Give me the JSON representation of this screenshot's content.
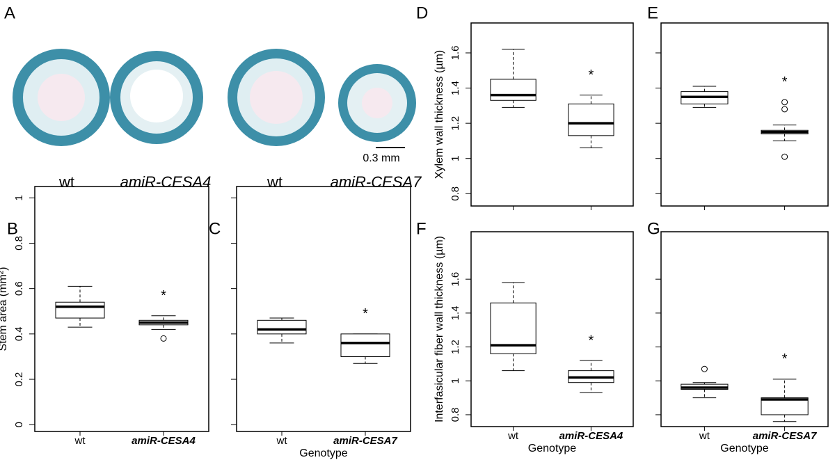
{
  "figure_a": {
    "panel": "A",
    "captions": [
      "wt",
      "amiR-CESA4",
      "wt",
      "amiR-CESA7"
    ],
    "scale_bar": "0.3 mm"
  },
  "chart_data": [
    {
      "type": "box",
      "panel": "B",
      "y_label": "Stem area (mm²)",
      "categories": [
        "wt",
        "amiR-CESA4"
      ],
      "ylim": [
        -0.03,
        1.05
      ],
      "yticks": [
        0.0,
        0.2,
        0.4,
        0.6,
        0.8,
        1.0
      ],
      "tick_labels": true,
      "boxes": [
        {
          "min": 0.43,
          "q1": 0.47,
          "median": 0.52,
          "q3": 0.54,
          "max": 0.61,
          "outliers": []
        },
        {
          "min": 0.42,
          "q1": 0.44,
          "median": 0.45,
          "q3": 0.46,
          "max": 0.48,
          "outliers": [
            0.38
          ],
          "annotation": "*"
        }
      ]
    },
    {
      "type": "box",
      "panel": "C",
      "x_label": "Genotype",
      "categories": [
        "wt",
        "amiR-CESA7"
      ],
      "ylim": [
        -0.03,
        1.05
      ],
      "yticks": [
        0.0,
        0.2,
        0.4,
        0.6,
        0.8,
        1.0
      ],
      "tick_labels": false,
      "boxes": [
        {
          "min": 0.36,
          "q1": 0.4,
          "median": 0.42,
          "q3": 0.46,
          "max": 0.47,
          "outliers": []
        },
        {
          "min": 0.27,
          "q1": 0.3,
          "median": 0.36,
          "q3": 0.4,
          "max": 0.4,
          "outliers": [],
          "annotation": "*"
        }
      ]
    },
    {
      "type": "box",
      "panel": "D",
      "y_label": "Xylem wall thickness (µm)",
      "categories": [
        null,
        null
      ],
      "ylim": [
        0.73,
        1.77
      ],
      "yticks": [
        0.8,
        1.0,
        1.2,
        1.4,
        1.6
      ],
      "tick_labels": true,
      "boxes": [
        {
          "min": 1.29,
          "q1": 1.33,
          "median": 1.36,
          "q3": 1.45,
          "max": 1.62,
          "outliers": []
        },
        {
          "min": 1.06,
          "q1": 1.13,
          "median": 1.2,
          "q3": 1.31,
          "max": 1.36,
          "outliers": [],
          "annotation": "*"
        }
      ]
    },
    {
      "type": "box",
      "panel": "E",
      "categories": [
        null,
        null
      ],
      "ylim": [
        0.73,
        1.77
      ],
      "yticks": [
        0.8,
        1.0,
        1.2,
        1.4,
        1.6
      ],
      "tick_labels": false,
      "boxes": [
        {
          "min": 1.29,
          "q1": 1.31,
          "median": 1.35,
          "q3": 1.38,
          "max": 1.41,
          "outliers": []
        },
        {
          "min": 1.1,
          "q1": 1.14,
          "median": 1.15,
          "q3": 1.16,
          "max": 1.19,
          "outliers": [
            1.32,
            1.28,
            1.01
          ],
          "annotation": "*"
        }
      ]
    },
    {
      "type": "box",
      "panel": "F",
      "y_label": "Interfasicular fiber wall thickness (µm)",
      "x_label": "Genotype",
      "categories": [
        "wt",
        "amiR-CESA4"
      ],
      "ylim": [
        0.73,
        1.88
      ],
      "yticks": [
        0.8,
        1.0,
        1.2,
        1.4,
        1.6
      ],
      "tick_labels": true,
      "boxes": [
        {
          "min": 1.06,
          "q1": 1.16,
          "median": 1.21,
          "q3": 1.46,
          "max": 1.58,
          "outliers": []
        },
        {
          "min": 0.93,
          "q1": 0.99,
          "median": 1.02,
          "q3": 1.06,
          "max": 1.12,
          "outliers": [],
          "annotation": "*"
        }
      ]
    },
    {
      "type": "box",
      "panel": "G",
      "x_label": "Genotype",
      "categories": [
        "wt",
        "amiR-CESA7"
      ],
      "ylim": [
        0.73,
        1.88
      ],
      "yticks": [
        0.8,
        1.0,
        1.2,
        1.4,
        1.6
      ],
      "tick_labels": false,
      "boxes": [
        {
          "min": 0.9,
          "q1": 0.95,
          "median": 0.96,
          "q3": 0.98,
          "max": 0.99,
          "outliers": [
            1.07
          ]
        },
        {
          "min": 0.76,
          "q1": 0.8,
          "median": 0.89,
          "q3": 0.9,
          "max": 1.01,
          "outliers": [],
          "annotation": "*"
        }
      ]
    }
  ]
}
